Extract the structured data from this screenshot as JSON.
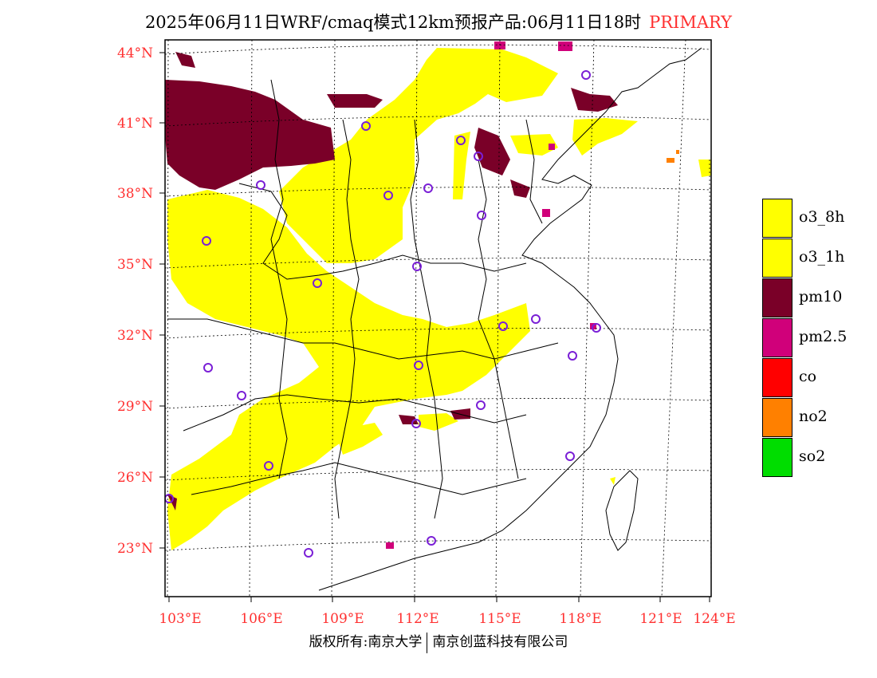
{
  "title": {
    "main": "2025年06月11日WRF/cmaq模式12km预报产品:06月11日18时",
    "tag": "PRIMARY"
  },
  "axes": {
    "lat_labels": [
      "44°N",
      "41°N",
      "38°N",
      "35°N",
      "32°N",
      "29°N",
      "26°N",
      "23°N"
    ],
    "lon_labels": [
      "103°E",
      "106°E",
      "109°E",
      "112°E",
      "115°E",
      "118°E",
      "121°E",
      "124°E"
    ]
  },
  "legend": [
    {
      "label": "o3_8h",
      "color": "#ffff00"
    },
    {
      "label": "o3_1h",
      "color": "#ffff00"
    },
    {
      "label": "pm10",
      "color": "#7a0028"
    },
    {
      "label": "pm2.5",
      "color": "#d0007a"
    },
    {
      "label": "co",
      "color": "#ff0000"
    },
    {
      "label": "no2",
      "color": "#ff8000"
    },
    {
      "label": "so2",
      "color": "#00dd00"
    }
  ],
  "footer": {
    "left": "版权所有:南京大学",
    "right": "南京创蓝科技有限公司"
  },
  "colors": {
    "label_red": "#ff3030",
    "o3": "#ffff00",
    "pm10": "#7a0028",
    "pm25": "#d0007a",
    "no2": "#ff8000",
    "station_marker": "#7a1fd6"
  }
}
